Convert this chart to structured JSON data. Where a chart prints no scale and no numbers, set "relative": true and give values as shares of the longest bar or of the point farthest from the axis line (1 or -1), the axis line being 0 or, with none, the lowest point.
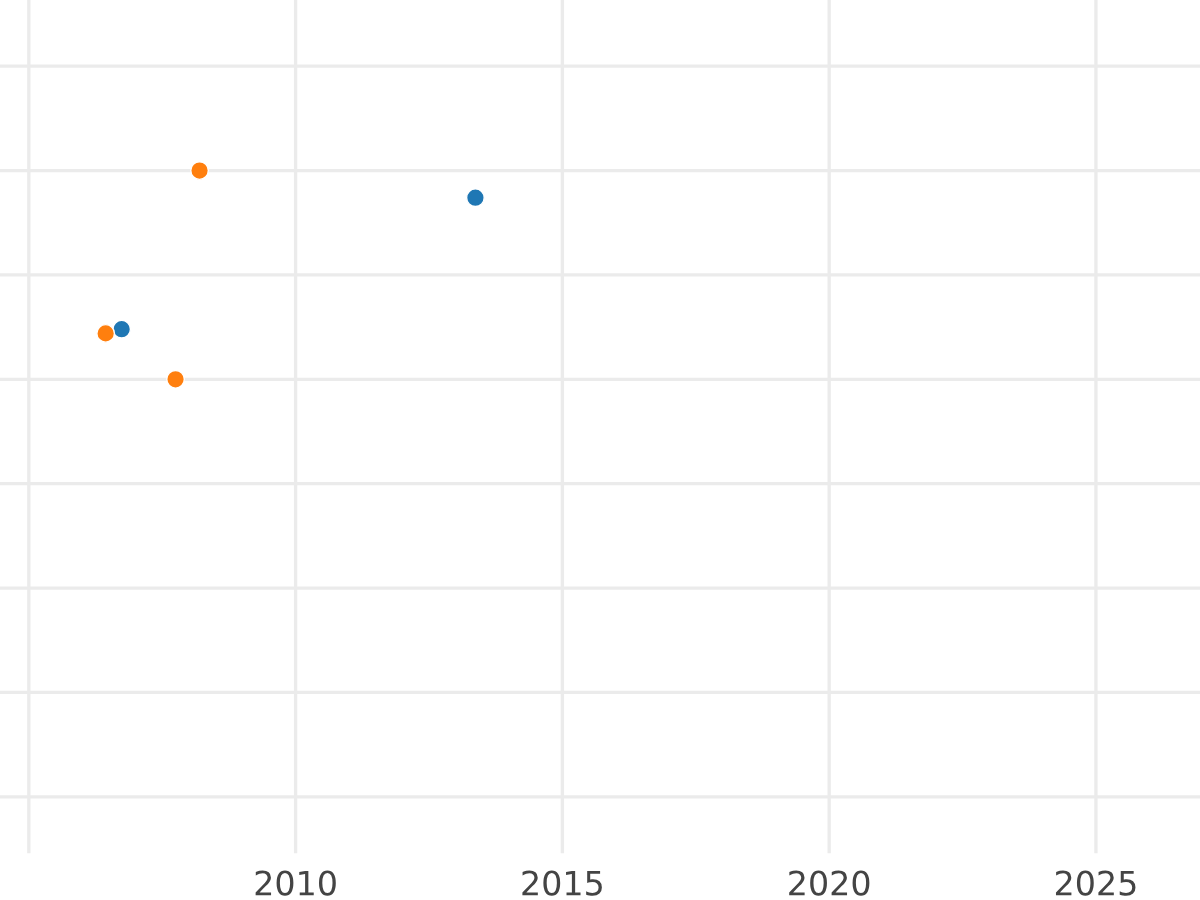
{
  "chart_data": {
    "type": "scatter",
    "relative": true,
    "marker": "circle",
    "grid": true,
    "legend": false,
    "xlim": [
      2004.46,
      2026.95
    ],
    "xticks": [
      {
        "value": 2005,
        "label": null
      },
      2010,
      2015,
      2020,
      2025
    ],
    "series": [
      {
        "color": "#1f77b4",
        "x": [
          2006.74,
          2013.37
        ],
        "values": [
          0.24,
          0.87
        ]
      },
      {
        "color": "#ff7f0e",
        "x": [
          2006.44,
          2008.2,
          2007.75
        ],
        "values": [
          0.22,
          1,
          0
        ]
      }
    ]
  }
}
